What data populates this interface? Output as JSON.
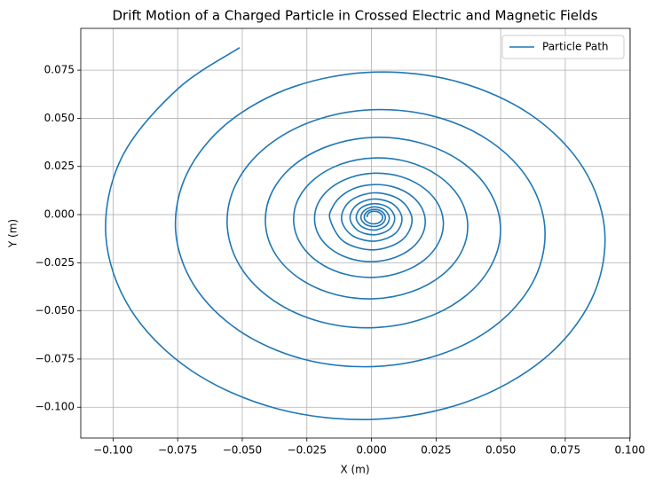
{
  "chart_data": {
    "type": "line",
    "title": "Drift Motion of a Charged Particle in Crossed Electric and Magnetic Fields",
    "x_label": "X (m)",
    "y_label": "Y (m)",
    "xlim": [
      -0.1125,
      0.1001
    ],
    "ylim": [
      -0.116,
      0.0967
    ],
    "xticks": [
      {
        "value": -0.1,
        "label": "−0.100"
      },
      {
        "value": -0.075,
        "label": "−0.075"
      },
      {
        "value": -0.05,
        "label": "−0.050"
      },
      {
        "value": -0.025,
        "label": "−0.025"
      },
      {
        "value": 0,
        "label": "0.000"
      },
      {
        "value": 0.025,
        "label": "0.025"
      },
      {
        "value": 0.05,
        "label": "0.050"
      },
      {
        "value": 0.075,
        "label": "0.075"
      },
      {
        "value": 0.1,
        "label": "0.100"
      }
    ],
    "yticks": [
      {
        "value": -0.1,
        "label": "−0.100"
      },
      {
        "value": -0.075,
        "label": "−0.075"
      },
      {
        "value": -0.05,
        "label": "−0.050"
      },
      {
        "value": -0.025,
        "label": "−0.025"
      },
      {
        "value": 0,
        "label": "0.000"
      },
      {
        "value": 0.025,
        "label": "0.025"
      },
      {
        "value": 0.05,
        "label": "0.050"
      },
      {
        "value": 0.075,
        "label": "0.075"
      }
    ],
    "grid": true,
    "legend": "upper right",
    "x": [
      -0.051,
      -0.0752,
      -0.0967,
      -0.1028,
      -0.0931,
      -0.0697,
      -0.0365,
      0.001,
      0.0371,
      0.0665,
      0.085,
      0.0903,
      0.0819,
      0.0618,
      0.0333,
      0.001,
      -0.0301,
      -0.0554,
      -0.0713,
      -0.0758,
      -0.0686,
      -0.0513,
      -0.0268,
      0.001,
      0.0277,
      0.0495,
      0.0632,
      0.0671,
      0.0609,
      0.046,
      0.0249,
      0.001,
      -0.022,
      -0.0407,
      -0.0525,
      -0.0558,
      -0.0505,
      -0.0377,
      -0.0196,
      0.001,
      0.0208,
      0.0369,
      0.047,
      0.0499,
      0.0453,
      0.0343,
      0.0187,
      0.001,
      -0.016,
      -0.0299,
      -0.0386,
      -0.041,
      -0.0371,
      -0.0276,
      -0.0142,
      0.001,
      0.0156,
      0.0276,
      0.0351,
      0.0372,
      0.0338,
      0.0256,
      0.0141,
      0.001,
      -0.0116,
      -0.0218,
      -0.0283,
      -0.0301,
      -0.0272,
      -0.0202,
      -0.0103,
      0.001,
      0.0118,
      0.0207,
      0.0262,
      0.0278,
      0.0253,
      0.0192,
      0.0107,
      0.001,
      -0.0083,
      -0.0159,
      -0.0207,
      -0.022,
      -0.0199,
      -0.0147,
      -0.0073,
      0.001,
      0.009,
      0.0155,
      0.0196,
      0.0208,
      0.019,
      0.0145,
      0.0082,
      0.001,
      -0.0059,
      -0.0115,
      -0.015,
      -0.016,
      -0.0106,
      0.001,
      0.0118,
      0.0157,
      0.011,
      0.001,
      -0.0083,
      -0.0116,
      -0.0076,
      0.001,
      0.009,
      0.0118,
      0.0084,
      0.001,
      -0.0058,
      -0.0083,
      -0.0053,
      0.001,
      0.0069,
      0.009,
      0.0065,
      0.001,
      -0.0041,
      -0.0059,
      -0.0037,
      0.001,
      0.0054,
      0.0069,
      0.005,
      0.001,
      -0.0027,
      -0.0041,
      -0.0025,
      0.001,
      0.0042,
      0.0054,
      0.004,
      0.001,
      -0.0018,
      -0.0028,
      -0.0016,
      0.001,
      0.0034,
      0.0043,
      0.0032,
      0.001,
      -0.0011,
      -0.0018
    ],
    "series": [
      {
        "name": "Particle Path",
        "color": "#1f77b4",
        "values": [
          0.0867,
          0.065,
          0.0295,
          -0.0108,
          -0.0495,
          -0.081,
          -0.1008,
          -0.1063,
          -0.0971,
          -0.0752,
          -0.0444,
          -0.0094,
          0.0243,
          0.0517,
          0.069,
          0.074,
          0.0664,
          0.0479,
          0.0216,
          -0.0082,
          -0.0369,
          -0.0602,
          -0.0749,
          -0.0789,
          -0.0721,
          -0.0559,
          -0.0331,
          -0.0072,
          0.0177,
          0.038,
          0.0508,
          0.0545,
          0.0489,
          0.0352,
          0.0157,
          -0.0063,
          -0.0276,
          -0.0448,
          -0.0557,
          -0.0587,
          -0.0537,
          -0.0417,
          -0.0247,
          -0.0056,
          0.0129,
          0.0279,
          0.0373,
          0.0401,
          0.0359,
          0.0258,
          0.0114,
          -0.005,
          -0.0207,
          -0.0334,
          -0.0414,
          -0.0437,
          -0.04,
          -0.0311,
          -0.0186,
          -0.0044,
          0.0093,
          0.0204,
          0.0274,
          0.0294,
          0.0263,
          0.0188,
          0.0082,
          -0.0039,
          -0.0156,
          -0.025,
          -0.0309,
          -0.0326,
          -0.0298,
          -0.0233,
          -0.014,
          -0.0035,
          0.0066,
          0.0148,
          0.02,
          0.0215,
          0.0192,
          0.0137,
          0.0058,
          -0.0032,
          -0.0118,
          -0.0188,
          -0.0232,
          -0.0244,
          -0.0223,
          -0.0175,
          -0.0106,
          -0.0029,
          0.0046,
          0.0107,
          0.0145,
          0.0156,
          0.014,
          0.0098,
          0.004,
          -0.0026,
          -0.0141,
          -0.0183,
          -0.0132,
          -0.0024,
          0.0077,
          0.0113,
          0.007,
          -0.0022,
          -0.0107,
          -0.0138,
          -0.01,
          -0.002,
          0.0054,
          0.0081,
          0.0049,
          -0.0019,
          -0.0082,
          -0.0105,
          -0.0077,
          -0.0018,
          0.0037,
          0.0057,
          0.0034,
          -0.0017,
          -0.0063,
          -0.008,
          -0.0059,
          -0.0016,
          0.0025,
          0.004,
          0.0022,
          -0.0015,
          -0.0049,
          -0.0062,
          -0.0047,
          -0.0014,
          0.0016,
          0.0027,
          0.0014,
          -0.0014,
          -0.0039,
          -0.0048,
          -0.0037,
          -0.0013,
          0.0009,
          0.0017,
          0.0008,
          -0.0013
        ]
      }
    ]
  }
}
